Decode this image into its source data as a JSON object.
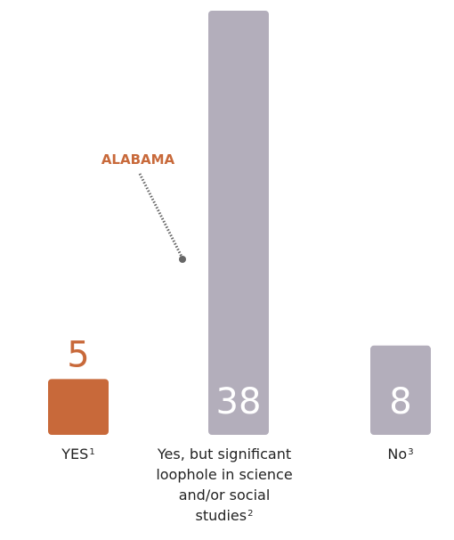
{
  "colors": {
    "highlight": "#c8693a",
    "default": "#b3aebb",
    "label_text": "#222222",
    "annotation_line": "#666666"
  },
  "chart_data": {
    "type": "bar",
    "categories": [
      "YES",
      "Yes, but significant loophole in science and/or social studies",
      "No"
    ],
    "category_footnotes": [
      "1",
      "2",
      "3"
    ],
    "values": [
      5,
      38,
      8
    ],
    "annotation": {
      "text": "ALABAMA",
      "category": "Yes, but significant loophole in science and/or social studies"
    }
  }
}
